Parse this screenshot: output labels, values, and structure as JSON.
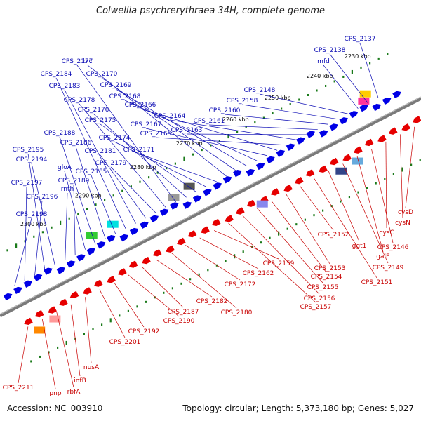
{
  "title": "Colwellia psychrerythraea 34H, complete genome",
  "footer": {
    "accession": "Accession: NC_003910",
    "stats": "Topology: circular; Length: 5,373,180 bp; Genes: 5,027"
  },
  "colors": {
    "forward_strand": "#0000e6",
    "reverse_strand": "#e60000",
    "top_label": "#0a0ab4",
    "bottom_label": "#c80000",
    "axis": "#7a7a7a",
    "tick": "#1a7a1a"
  },
  "kbp_markers": [
    "2230 kbp",
    "2240 kbp",
    "2250 kbp",
    "2260 kbp",
    "2270 kbp",
    "2280 kbp",
    "2290 kbp",
    "2300 kbp"
  ],
  "top_genes": [
    "CPS_2137",
    "CPS_2138",
    "mfd",
    "CPS_2148",
    "CPS_2158",
    "CPS_2160",
    "CPS_2161",
    "CPS_2163",
    "CPS_2164",
    "CPS_2165",
    "CPS_2166",
    "CPS_2167",
    "CPS_2168",
    "CPS_2169",
    "CPS_2170",
    "blc",
    "CPS_2171",
    "CPS_2174",
    "CPS_2175",
    "CPS_2176",
    "CPS_2177",
    "CPS_2178",
    "CPS_2179",
    "CPS_2181",
    "CPS_2183",
    "CPS_2184",
    "CPS_2185",
    "CPS_2186",
    "CPS_2188",
    "gloA",
    "CPS_2189",
    "rnth",
    "CPS_2194",
    "CPS_2195",
    "CPS_2196",
    "CPS_2197",
    "CPS_2198"
  ],
  "bottom_genes": [
    "cysD",
    "cysN",
    "cysC",
    "CPS_2146",
    "galE",
    "CPS_2149",
    "ggt1",
    "CPS_2151",
    "CPS_2152",
    "CPS_2153",
    "CPS_2154",
    "CPS_2155",
    "CPS_2156",
    "CPS_2157",
    "CPS_2159",
    "CPS_2162",
    "CPS_2172",
    "CPS_2180",
    "CPS_2182",
    "CPS_2187",
    "CPS_2190",
    "CPS_2192",
    "CPS_2201",
    "nusA",
    "infB",
    "rbfA",
    "pnp",
    "CPS_2211"
  ]
}
